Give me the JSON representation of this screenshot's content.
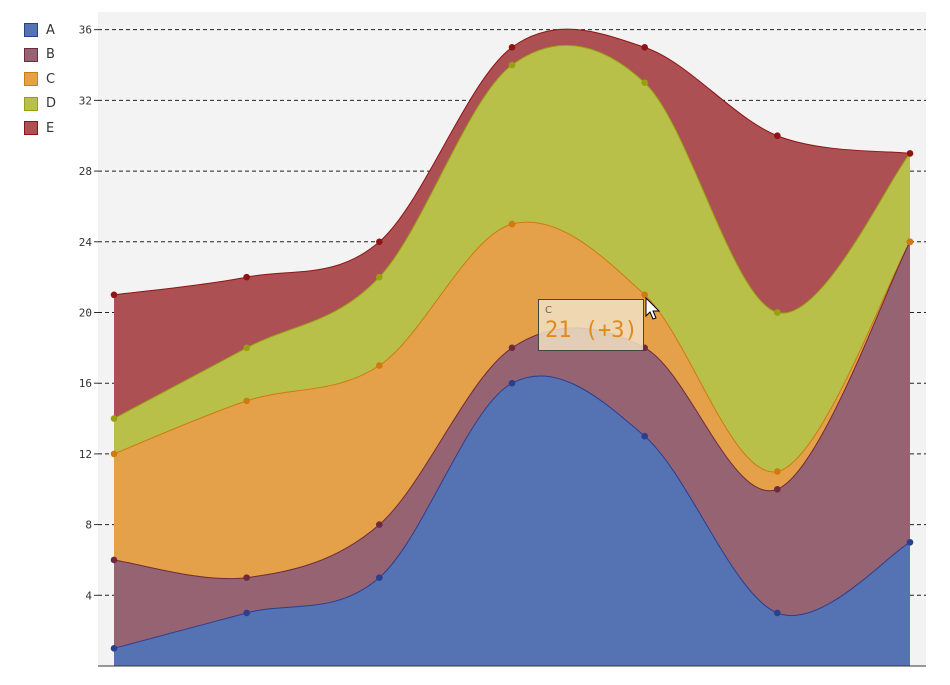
{
  "chart_data": {
    "type": "area",
    "stacked": true,
    "interpolation": "smooth",
    "x": [
      1,
      2,
      3,
      4,
      5,
      6,
      7
    ],
    "series": [
      {
        "name": "A",
        "color": "#5572b3",
        "line": "#2a3f8f",
        "values": [
          1,
          3,
          5,
          16,
          13,
          3,
          7
        ]
      },
      {
        "name": "B",
        "color": "#966373",
        "line": "#6e2a3e",
        "values": [
          5,
          2,
          3,
          2,
          5,
          7,
          17
        ]
      },
      {
        "name": "C",
        "color": "#e5a04a",
        "line": "#d07a10",
        "values": [
          6,
          10,
          9,
          7,
          3,
          1,
          0
        ]
      },
      {
        "name": "D",
        "color": "#b8c049",
        "line": "#98a010",
        "values": [
          2,
          3,
          5,
          9,
          12,
          9,
          5
        ]
      },
      {
        "name": "E",
        "color": "#ad5053",
        "line": "#8e1515",
        "values": [
          7,
          4,
          2,
          1,
          2,
          10,
          0
        ]
      }
    ],
    "ylim": [
      0,
      37
    ],
    "yticks": [
      4,
      8,
      12,
      16,
      20,
      24,
      28,
      32,
      36
    ],
    "grid": "horizontal-dashed",
    "legend": "top-left"
  },
  "tooltip": {
    "series": "C",
    "value": "21 (+3)"
  }
}
